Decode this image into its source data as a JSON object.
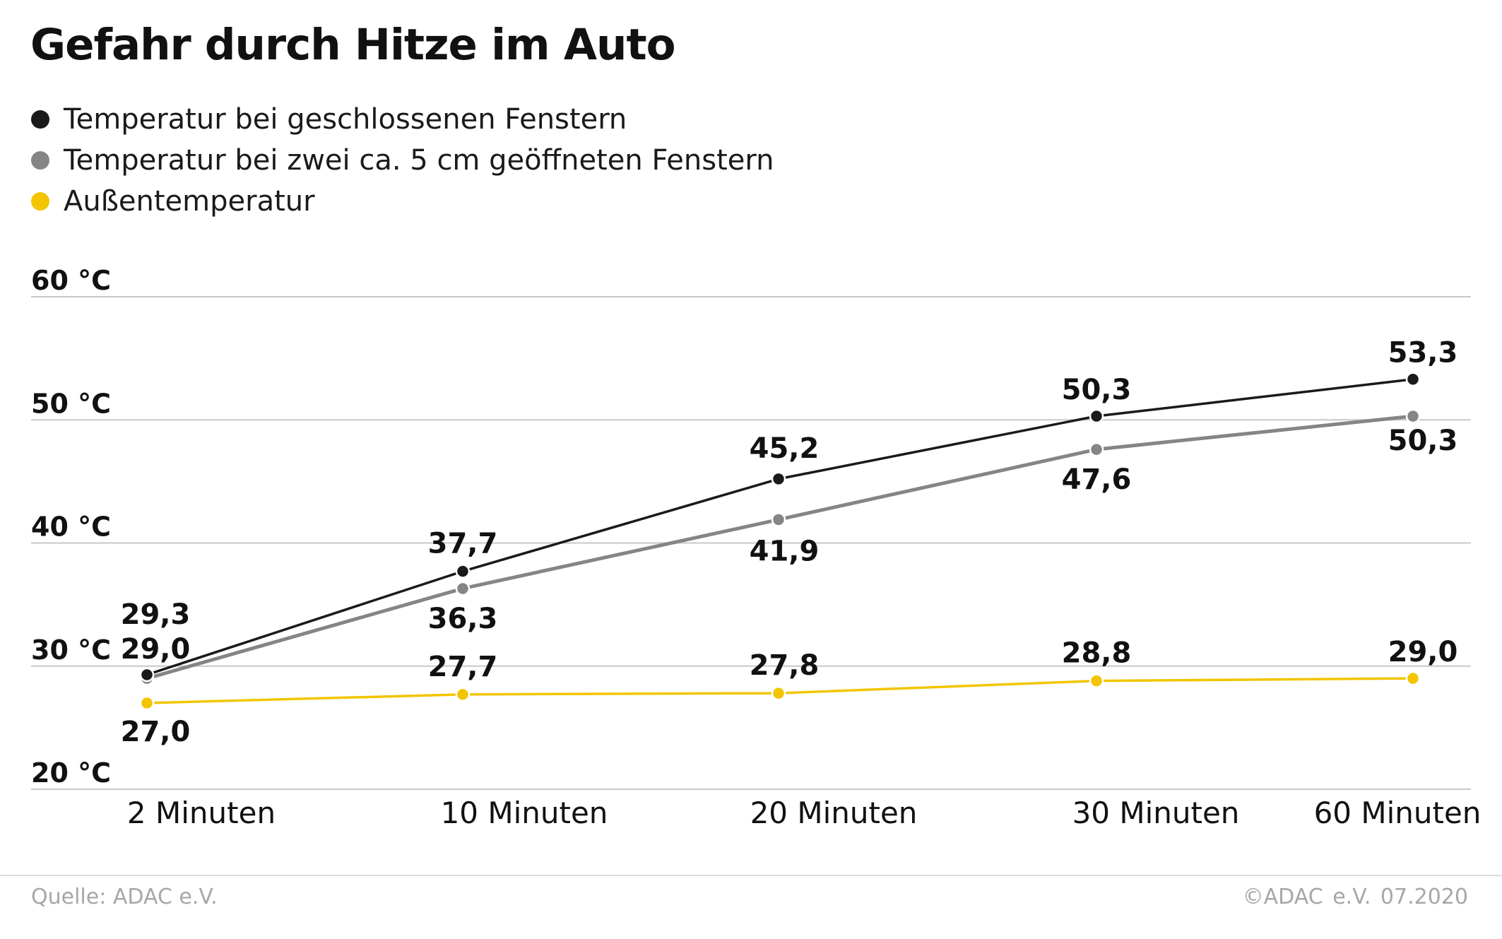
{
  "colors": {
    "closed": "#1a1a1a",
    "open": "#858585",
    "outside": "#f2c500",
    "grid": "#c8c8c8"
  },
  "chart_data": {
    "type": "line",
    "title": "Gefahr durch Hitze im Auto",
    "categories": [
      "2 Minuten",
      "10 Minuten",
      "20 Minuten",
      "30 Minuten",
      "60 Minuten"
    ],
    "ylim": [
      20,
      60
    ],
    "yticks": [
      20,
      30,
      40,
      50,
      60
    ],
    "ytick_labels": [
      "20 °C",
      "30 °C",
      "40 °C",
      "50 °C",
      "60 °C"
    ],
    "grid": true,
    "legend_position": "top-left",
    "series": [
      {
        "name": "Temperatur bei geschlossenen Fenstern",
        "color_key": "closed",
        "values": [
          29.3,
          37.7,
          45.2,
          50.3,
          53.3
        ],
        "labels": [
          "29,3",
          "37,7",
          "45,2",
          "50,3",
          "53,3"
        ]
      },
      {
        "name": "Temperatur bei zwei ca. 5 cm geöffneten Fenstern",
        "color_key": "open",
        "values": [
          29.0,
          36.3,
          41.9,
          47.6,
          50.3
        ],
        "labels": [
          "29,0",
          "36,3",
          "41,9",
          "47,6",
          "50,3"
        ]
      },
      {
        "name": "Außentemperatur",
        "color_key": "outside",
        "values": [
          27.0,
          27.7,
          27.8,
          28.8,
          29.0
        ],
        "labels": [
          "27,0",
          "27,7",
          "27,8",
          "28,8",
          "29,0"
        ]
      }
    ]
  },
  "footer": {
    "source": "Quelle: ADAC e.V.",
    "copyright": "©ADAC e.V.  07.2020"
  }
}
